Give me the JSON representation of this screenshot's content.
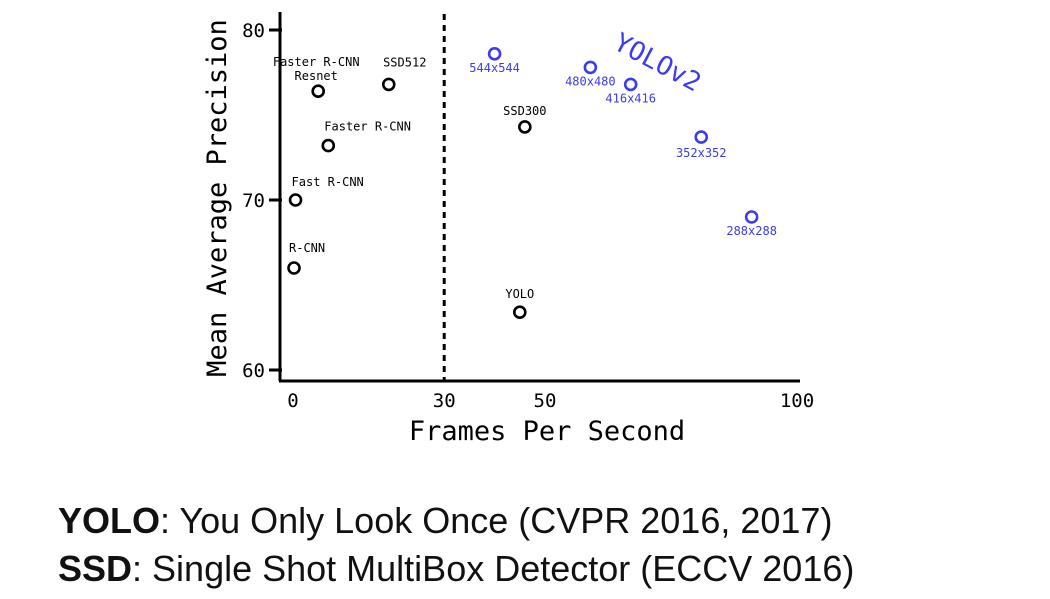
{
  "chart_data": {
    "type": "scatter",
    "xlabel": "Frames Per Second",
    "ylabel": "Mean Average Precision",
    "xlim": [
      0,
      100
    ],
    "ylim": [
      60,
      80
    ],
    "x_ticks": [
      "0",
      "30",
      "50",
      "100"
    ],
    "y_ticks": [
      "60",
      "70",
      "80"
    ],
    "reference_line_x": 30,
    "series": [
      {
        "color": "#000000",
        "points": [
          {
            "label": "R-CNN",
            "x": 0.2,
            "y": 66.0
          },
          {
            "label": "Fast R-CNN",
            "x": 0.5,
            "y": 70.0
          },
          {
            "label": "Faster R-CNN",
            "x": 7,
            "y": 73.2
          },
          {
            "label": "Faster R-CNN\nResnet",
            "x": 5,
            "y": 76.4
          },
          {
            "label": "SSD512",
            "x": 19,
            "y": 76.8
          },
          {
            "label": "SSD300",
            "x": 46,
            "y": 74.3
          },
          {
            "label": "YOLO",
            "x": 45,
            "y": 63.4
          }
        ]
      },
      {
        "name": "YOLOv2",
        "color": "#3b3bf0",
        "points": [
          {
            "label": "544x544",
            "x": 40,
            "y": 78.6
          },
          {
            "label": "480x480",
            "x": 59,
            "y": 77.8
          },
          {
            "label": "416x416",
            "x": 67,
            "y": 76.8
          },
          {
            "label": "352x352",
            "x": 81,
            "y": 73.7
          },
          {
            "label": "288x288",
            "x": 91,
            "y": 69.0
          }
        ]
      }
    ]
  },
  "caption": {
    "line1_bold": "YOLO",
    "line1_rest": ": You Only Look Once (CVPR 2016, 2017)",
    "line2_bold": "SSD",
    "line2_rest": ": Single Shot MultiBox Detector (ECCV 2016)"
  }
}
